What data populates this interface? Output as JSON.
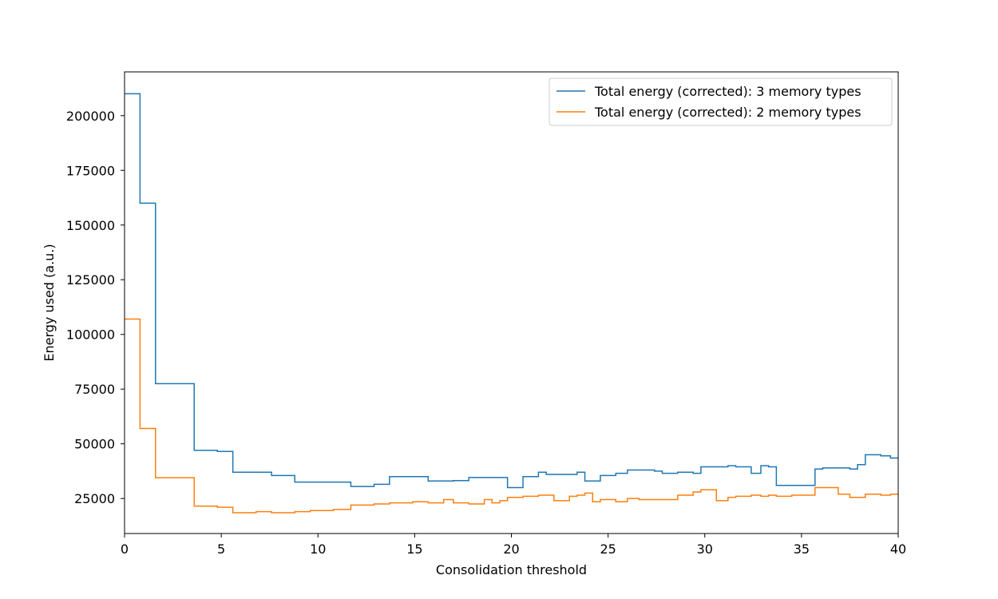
{
  "chart_data": {
    "type": "line",
    "drawstyle": "steps-post",
    "xlabel": "Consolidation threshold",
    "ylabel": "Energy used (a.u.)",
    "xlim": [
      0,
      40
    ],
    "ylim": [
      9000,
      220000
    ],
    "xticks": [
      0,
      5,
      10,
      15,
      20,
      25,
      30,
      35,
      40
    ],
    "yticks": [
      25000,
      50000,
      75000,
      100000,
      125000,
      150000,
      175000,
      200000
    ],
    "grid": false,
    "legend_position": "upper right",
    "series": [
      {
        "name": "Total energy (corrected): 3 memory types",
        "color": "#1f77b4",
        "x": [
          0,
          0.8,
          1.6,
          3.6,
          4.8,
          5.6,
          7.6,
          8.8,
          11.7,
          12.9,
          13.7,
          15.7,
          17,
          17.8,
          19.8,
          20.6,
          21.4,
          21.8,
          23.4,
          23.8,
          24.6,
          25.4,
          26,
          27.4,
          27.8,
          28.6,
          29.4,
          29.8,
          31.2,
          31.6,
          32.4,
          32.9,
          33.3,
          33.7,
          35.7,
          36.1,
          37.5,
          37.9,
          38.3,
          39.1,
          39.6,
          40
        ],
        "y": [
          210000,
          160000,
          77500,
          47000,
          46500,
          37000,
          35500,
          32500,
          30500,
          31500,
          35000,
          33000,
          33200,
          34600,
          30000,
          35000,
          37000,
          36000,
          37000,
          33000,
          35500,
          36500,
          38000,
          37500,
          36500,
          37000,
          36500,
          39500,
          40000,
          39500,
          36500,
          40000,
          39500,
          31000,
          38500,
          39000,
          38500,
          40500,
          45000,
          44500,
          43500,
          43500
        ]
      },
      {
        "name": "Total energy (corrected): 2 memory types",
        "color": "#ff7f0e",
        "x": [
          0,
          0.8,
          1.6,
          2.8,
          3.6,
          4.8,
          5.6,
          6.8,
          7.6,
          8.8,
          9.6,
          10.8,
          11.7,
          12.9,
          13.7,
          14.9,
          15.7,
          16.5,
          17,
          17.8,
          18.6,
          19,
          19.4,
          19.8,
          20.6,
          21.4,
          22.2,
          23,
          23.4,
          23.8,
          24.2,
          24.6,
          25.4,
          26,
          26.6,
          27.4,
          28.6,
          29.4,
          29.8,
          30.6,
          31.2,
          31.6,
          32.4,
          32.9,
          33.3,
          33.7,
          34.5,
          35.7,
          36.9,
          37.5,
          38.3,
          39.1,
          39.6,
          40
        ],
        "y": [
          107000,
          57000,
          34500,
          34500,
          21500,
          21000,
          18500,
          19000,
          18500,
          19000,
          19500,
          20000,
          22000,
          22500,
          23000,
          23500,
          23000,
          24500,
          23000,
          22500,
          24500,
          23000,
          24000,
          25500,
          26000,
          26500,
          24000,
          26000,
          26500,
          27500,
          23500,
          24500,
          23500,
          25000,
          24500,
          24500,
          26500,
          28000,
          29000,
          24000,
          25500,
          26000,
          26500,
          26000,
          26500,
          26000,
          26500,
          30000,
          27000,
          25500,
          27000,
          26500,
          27000,
          27000
        ]
      }
    ]
  }
}
